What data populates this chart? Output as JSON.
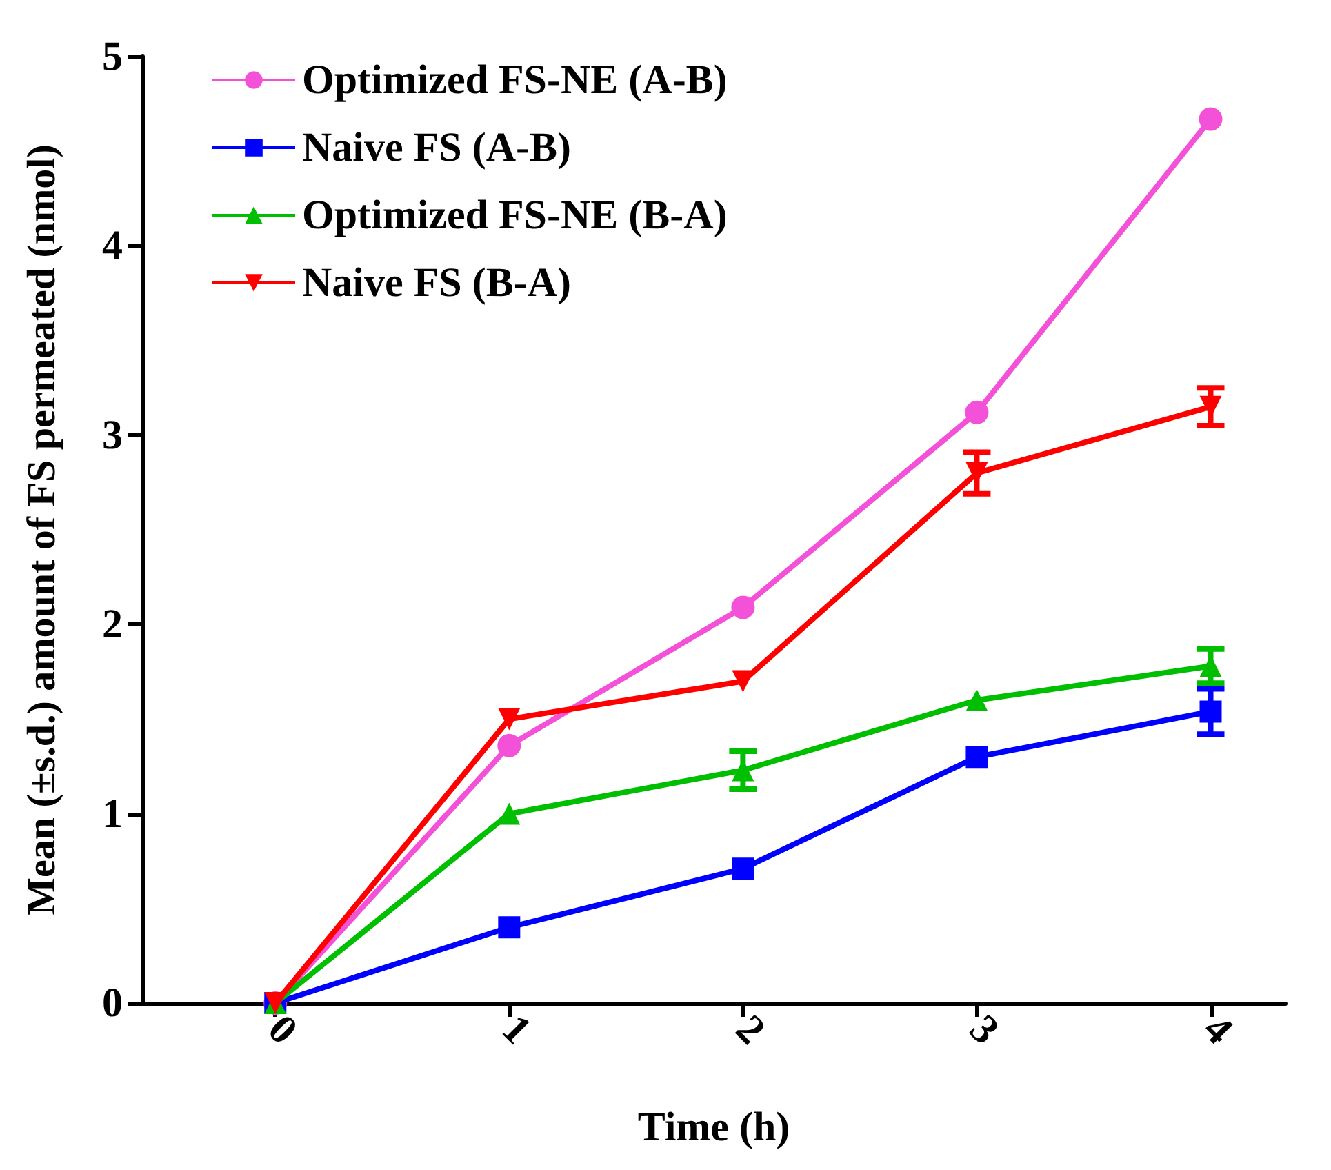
{
  "chart_data": {
    "type": "line",
    "xlabel": "Time (h)",
    "ylabel": "Mean (±s.d.) amount of FS permeated (nmol)",
    "x": [
      0,
      1,
      2,
      3,
      4
    ],
    "xlim": [
      -0.57,
      4.32
    ],
    "xticks": [
      0,
      1,
      2,
      3,
      4
    ],
    "ylim": [
      0,
      5
    ],
    "yticks": [
      0,
      1,
      2,
      3,
      4,
      5
    ],
    "grid": false,
    "legend": "top left",
    "series": [
      {
        "name": "Optimized FS-NE (A-B)",
        "color": "#f352d8",
        "marker": "circle",
        "values": [
          0,
          1.36,
          2.09,
          3.12,
          4.67
        ]
      },
      {
        "name": "Naive FS (A-B)",
        "color": "#0000ff",
        "marker": "square",
        "values": [
          0,
          0.4,
          0.71,
          1.3,
          1.54
        ],
        "errors": [
          null,
          null,
          null,
          null,
          0.12
        ]
      },
      {
        "name": "Optimized FS-NE (B-A)",
        "color": "#00bf00",
        "marker": "triangle",
        "values": [
          0,
          1.0,
          1.23,
          1.6,
          1.78
        ],
        "errors": [
          null,
          null,
          0.1,
          null,
          0.09
        ]
      },
      {
        "name": "Naive FS (B-A)",
        "color": "#ff0000",
        "marker": "triangle-down",
        "values": [
          0,
          1.5,
          1.7,
          2.8,
          3.15
        ],
        "errors": [
          null,
          null,
          null,
          0.11,
          0.1
        ]
      }
    ]
  }
}
